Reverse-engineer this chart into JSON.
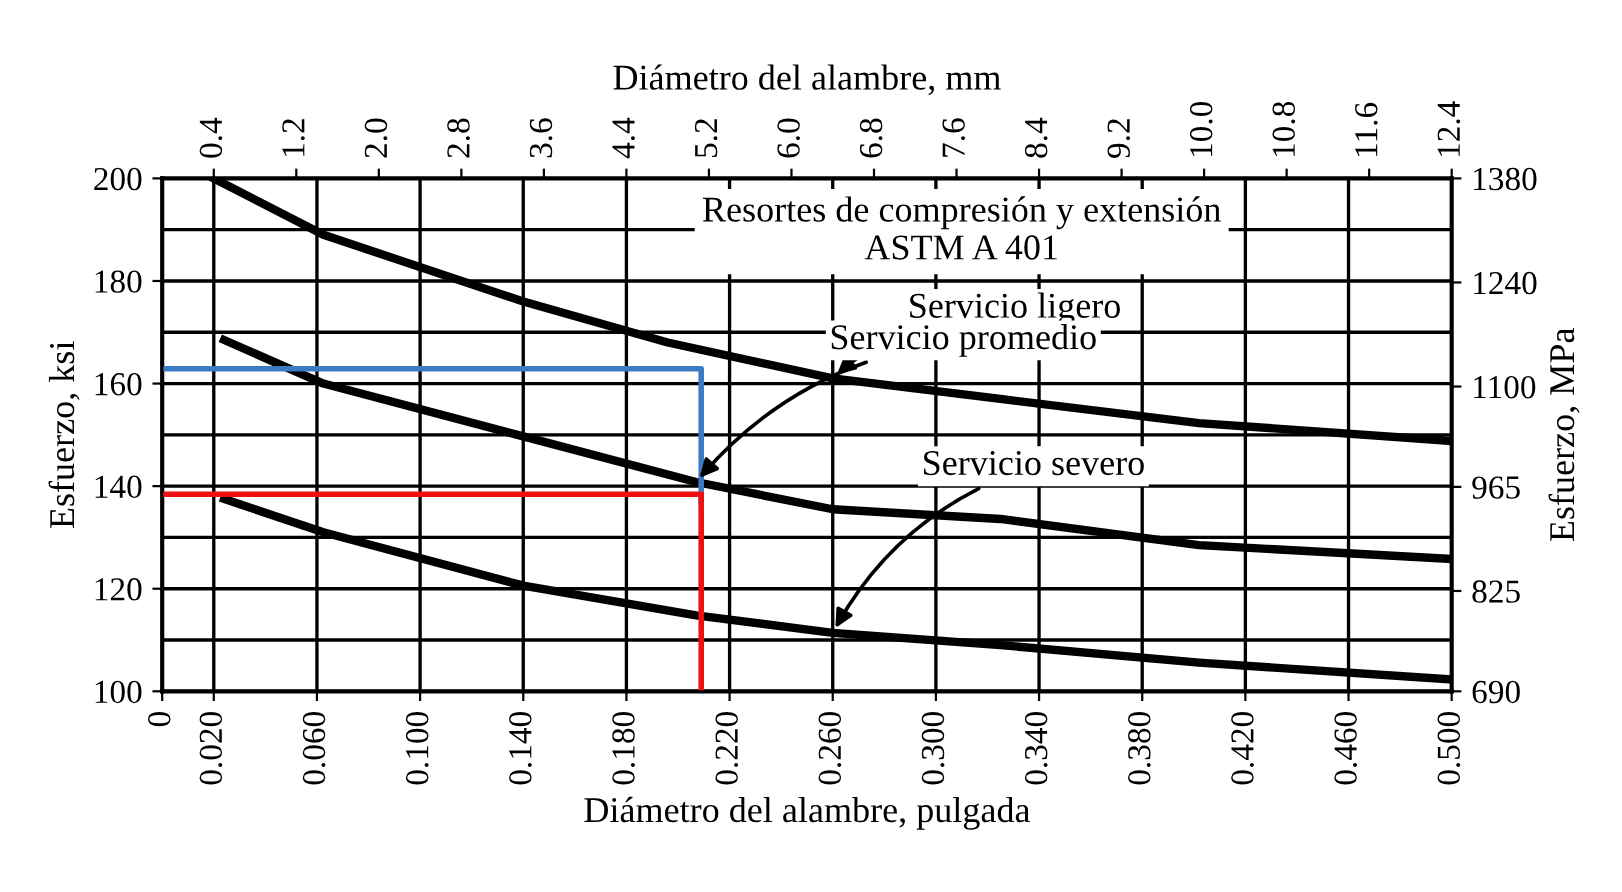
{
  "chart_data": {
    "type": "line",
    "title": "Resortes de compresión y extensión\nASTM A 401",
    "xlabel": "Diámetro del alambre, pulgada",
    "x2label": "Diámetro del alambre, mm",
    "ylabel": "Esfuerzo, ksi",
    "y2label": "Esfuerzo, MPa",
    "xlim": [
      0,
      0.5
    ],
    "xticks": [
      0,
      {
        "value": 0.02,
        "label": "0.020"
      },
      {
        "value": 0.06,
        "label": "0.060"
      },
      {
        "value": 0.1,
        "label": "0.100"
      },
      {
        "value": 0.14,
        "label": "0.140"
      },
      {
        "value": 0.18,
        "label": "0.180"
      },
      {
        "value": 0.22,
        "label": "0.220"
      },
      {
        "value": 0.26,
        "label": "0.260"
      },
      {
        "value": 0.3,
        "label": "0.300"
      },
      {
        "value": 0.34,
        "label": "0.340"
      },
      {
        "value": 0.38,
        "label": "0.380"
      },
      {
        "value": 0.42,
        "label": "0.420"
      },
      {
        "value": 0.46,
        "label": "0.460"
      },
      {
        "value": 0.5,
        "label": "0.500"
      }
    ],
    "x2lim": [
      -0.1,
      12.4
    ],
    "x2ticks": [
      0.4,
      1.2,
      {
        "value": 2,
        "label": "2.0"
      },
      2.8,
      3.6,
      4.4,
      5.2,
      {
        "value": 6,
        "label": "6.0"
      },
      6.8,
      7.6,
      8.4,
      9.2,
      {
        "value": 10,
        "label": "10.0"
      },
      10.8,
      11.6,
      12.4
    ],
    "ylim": [
      100,
      200
    ],
    "yticks": [
      100,
      120,
      140,
      160,
      180,
      200
    ],
    "y2lim": [
      690,
      1380
    ],
    "y2ticks": [
      690,
      825,
      965,
      1100,
      1240,
      1380
    ],
    "grid": true,
    "series": [
      {
        "name": "Servicio ligero",
        "color": "#000000",
        "x": [
          0.02,
          0.0625,
          0.14,
          0.196,
          0.26,
          0.325,
          0.402,
          0.5
        ],
        "values": [
          200,
          189,
          176,
          168,
          161,
          157,
          152.3,
          148.8
        ]
      },
      {
        "name": "Servicio promedio",
        "color": "#000000",
        "x": [
          0.024,
          0.0625,
          0.14,
          0.207,
          0.26,
          0.325,
          0.402,
          0.5
        ],
        "values": [
          168.5,
          160,
          149.7,
          140.8,
          135.5,
          133.6,
          128.5,
          125.8
        ]
      },
      {
        "name": "Servicio severo",
        "color": "#000000",
        "x": [
          0.024,
          0.0625,
          0.14,
          0.207,
          0.26,
          0.325,
          0.402,
          0.5
        ],
        "values": [
          137.5,
          131,
          120.6,
          114.8,
          111.4,
          109,
          105.6,
          102.3
        ]
      },
      {
        "color": "#3a7cc3",
        "x": [
          0,
          0.209,
          0.209
        ],
        "values": [
          162.9,
          162.9,
          137
        ]
      },
      {
        "color": "#ee1111",
        "x": [
          0,
          0.209,
          0.209
        ],
        "values": [
          138.4,
          138.4,
          100
        ]
      }
    ]
  }
}
